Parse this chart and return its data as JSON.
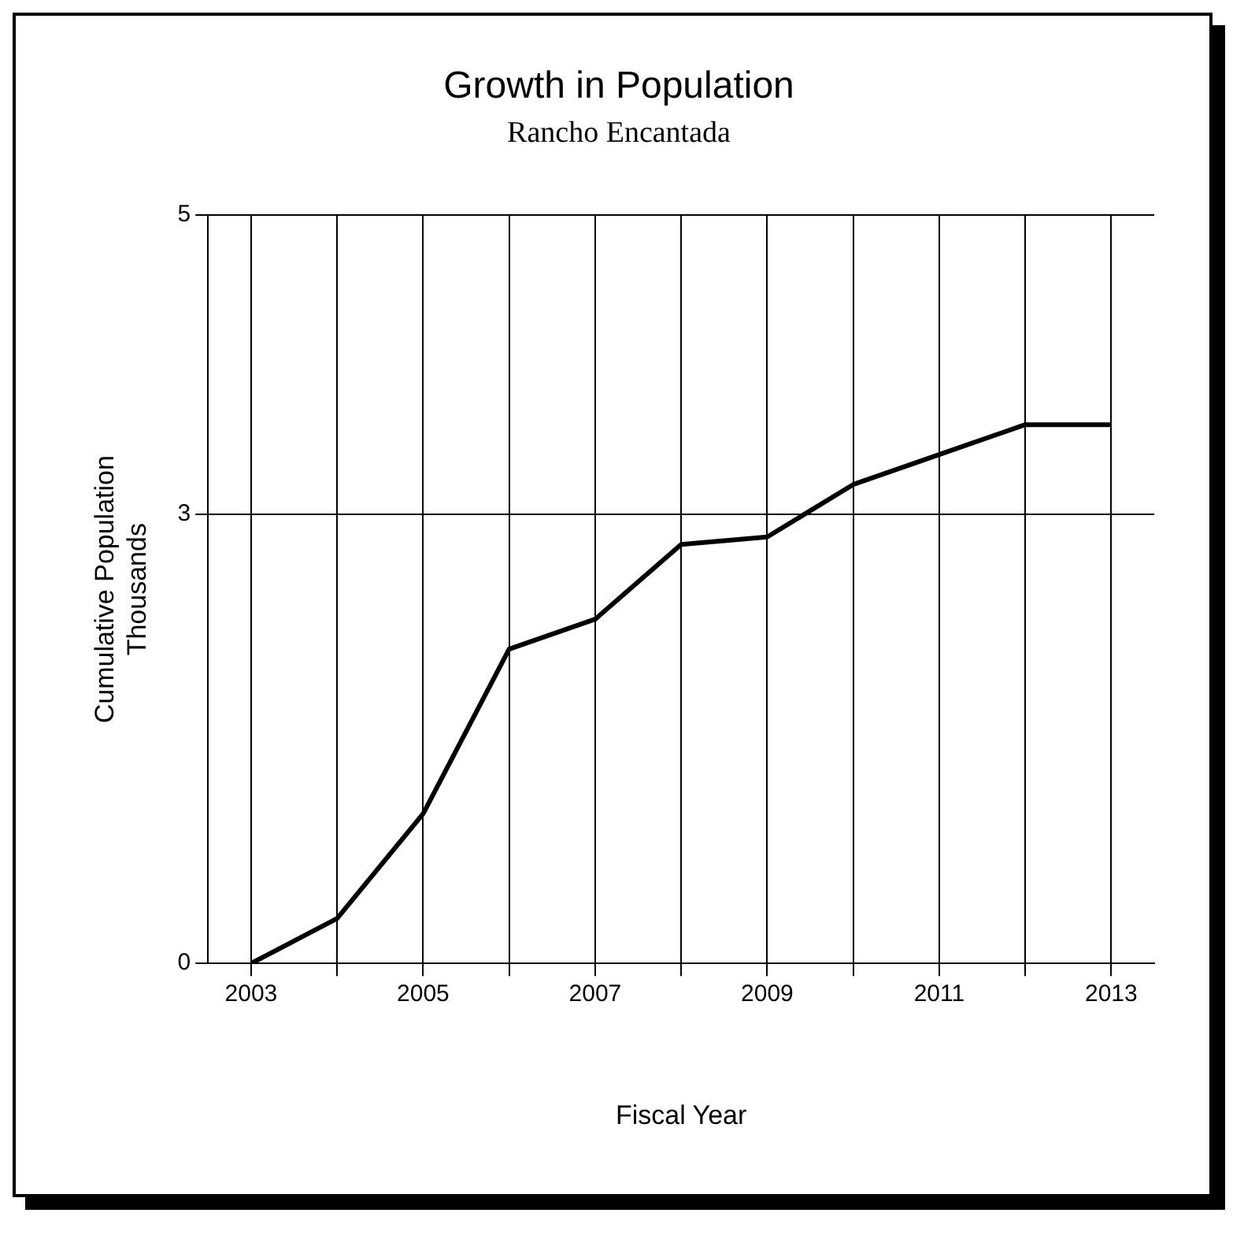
{
  "chart_data": {
    "type": "line",
    "title": "Growth in Population",
    "subtitle": "Rancho Encantada",
    "xlabel": "Fiscal Year",
    "ylabel": "Cumulative Population\nThousands",
    "x": [
      2003,
      2004,
      2005,
      2006,
      2007,
      2008,
      2009,
      2010,
      2011,
      2012,
      2013
    ],
    "series": [
      {
        "color": "#000000",
        "values": [
          0,
          0.3,
          1.0,
          2.1,
          2.3,
          2.8,
          2.85,
          3.2,
          3.4,
          3.6,
          3.6
        ]
      }
    ],
    "xlim": [
      2002.5,
      2013.5
    ],
    "xticks": [
      2003,
      {
        "value": 2004,
        "label": null
      },
      2005,
      {
        "value": 2006,
        "label": null
      },
      2007,
      {
        "value": 2008,
        "label": null
      },
      2009,
      {
        "value": 2010,
        "label": null
      },
      2011,
      {
        "value": 2012,
        "label": null
      },
      2013
    ],
    "ylim": [
      0,
      5
    ],
    "yticks": [
      0,
      3,
      5
    ],
    "grid": true,
    "legend": false,
    "marker": "none",
    "line_style": "solid"
  }
}
